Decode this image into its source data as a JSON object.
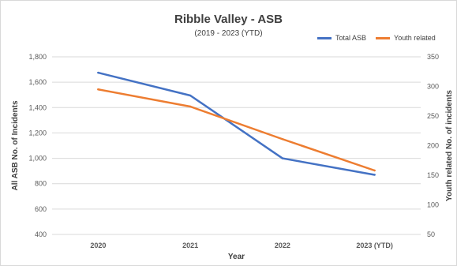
{
  "chart_data": {
    "type": "line",
    "title": "Ribble Valley - ASB",
    "subtitle": "(2019 - 2023 (YTD)",
    "categories": [
      "2020",
      "2021",
      "2022",
      "2023 (YTD)"
    ],
    "xlabel": "Year",
    "ylabel": "All ASB No. of Incidents",
    "y2label": "Youth related No. of incidents",
    "ylim": [
      400,
      1800
    ],
    "y_ticks": [
      "400",
      "600",
      "800",
      "1,000",
      "1,200",
      "1,400",
      "1,600",
      "1,800"
    ],
    "y2lim": [
      50,
      350
    ],
    "y2_ticks": [
      "50",
      "100",
      "150",
      "200",
      "250",
      "300",
      "350"
    ],
    "grid": true,
    "legend": "top-right",
    "series": [
      {
        "name": "Total ASB",
        "axis": "left",
        "color": "#4472C4",
        "values": [
          1675,
          1495,
          1000,
          870
        ]
      },
      {
        "name": "Youth related",
        "axis": "right",
        "color": "#ED7D31",
        "values": [
          295,
          266,
          211,
          158
        ]
      }
    ]
  }
}
